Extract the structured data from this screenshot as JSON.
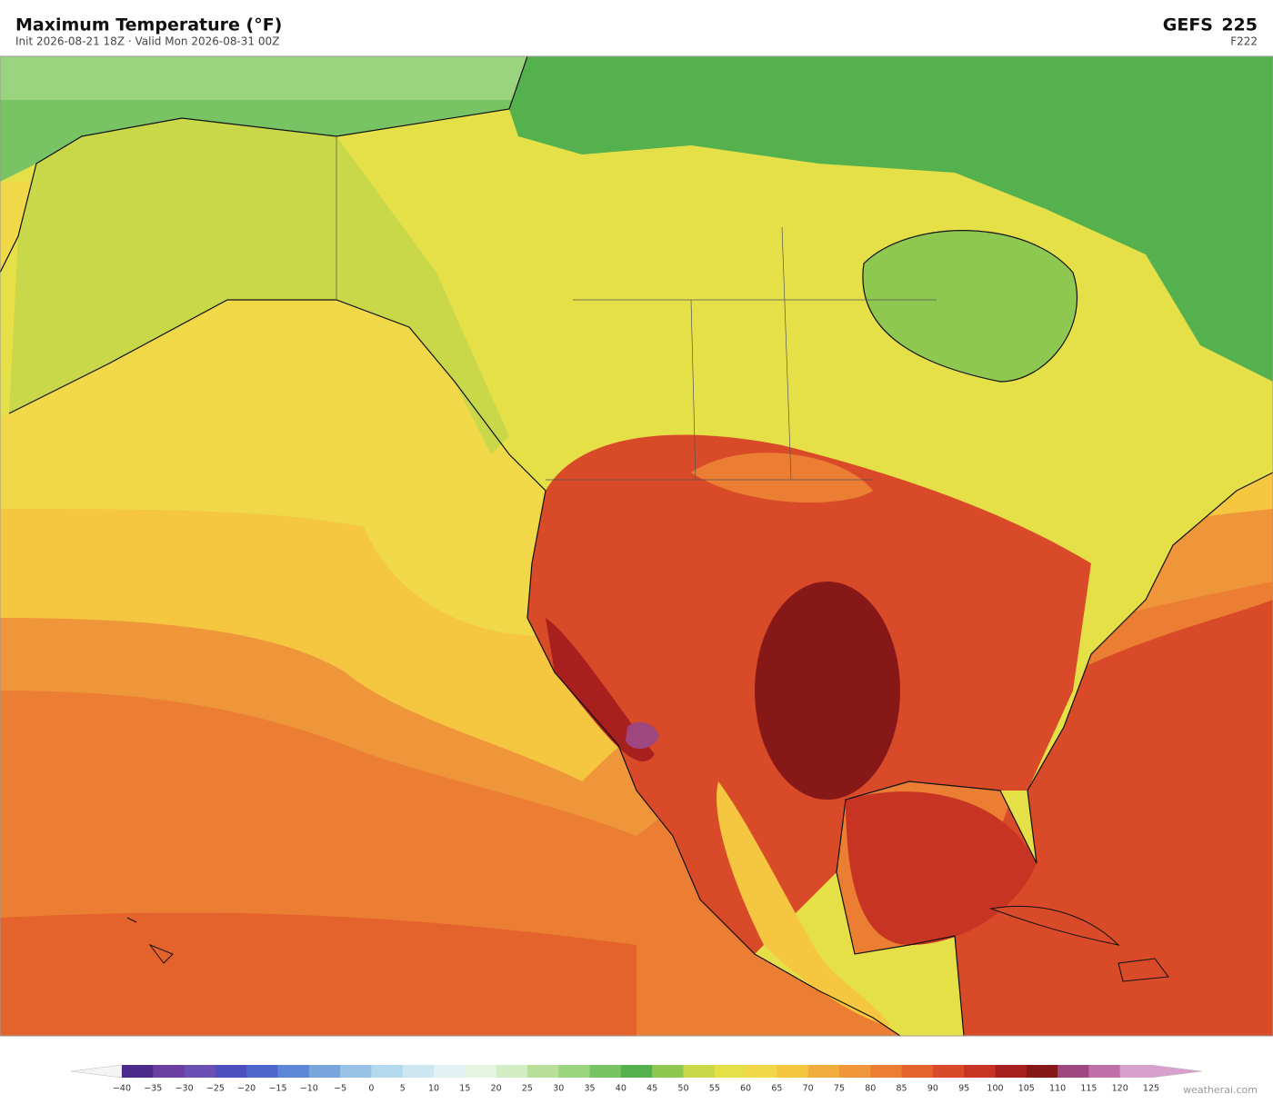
{
  "header": {
    "title": "Maximum Temperature  (°F)",
    "subtitle": "Init 2026-08-21 18Z  ·  Valid Mon 2026-08-31 00Z",
    "model": "GEFS",
    "run": "225",
    "forecast_hour": "F222"
  },
  "colorbar": {
    "ticks": [
      {
        "value": -40,
        "label": "−40"
      },
      {
        "value": -35,
        "label": "−35"
      },
      {
        "value": -30,
        "label": "−30"
      },
      {
        "value": -25,
        "label": "−25"
      },
      {
        "value": -20,
        "label": "−20"
      },
      {
        "value": -15,
        "label": "−15"
      },
      {
        "value": -10,
        "label": "−10"
      },
      {
        "value": -5,
        "label": "−5"
      },
      0,
      5,
      10,
      15,
      20,
      25,
      30,
      35,
      40,
      45,
      50,
      55,
      60,
      65,
      70,
      75,
      80,
      85,
      90,
      95,
      100,
      105,
      110,
      115,
      120,
      125
    ],
    "colors": [
      "#4b2a8c",
      "#6a3fa0",
      "#6a4fb4",
      "#4b4fc0",
      "#4f66cc",
      "#5c86d6",
      "#78a6dc",
      "#98c2e6",
      "#b4d8ee",
      "#cce6f2",
      "#e2f1f2",
      "#e6f4e2",
      "#d2ecc4",
      "#b9e09a",
      "#9ad47e",
      "#78c464",
      "#55b04e",
      "#8fc850",
      "#c8d848",
      "#e6e048",
      "#f0d848",
      "#f5c640",
      "#f2ac3c",
      "#f0963a",
      "#ec7e34",
      "#e4622c",
      "#d84a28",
      "#c83424",
      "#a8201e",
      "#861818",
      "#9e4680",
      "#c070a8",
      "#d8a0cc"
    ],
    "under_color": "#f4f4f4",
    "over_color": "#d8a0cc"
  },
  "watermark": "weatherai.com"
}
